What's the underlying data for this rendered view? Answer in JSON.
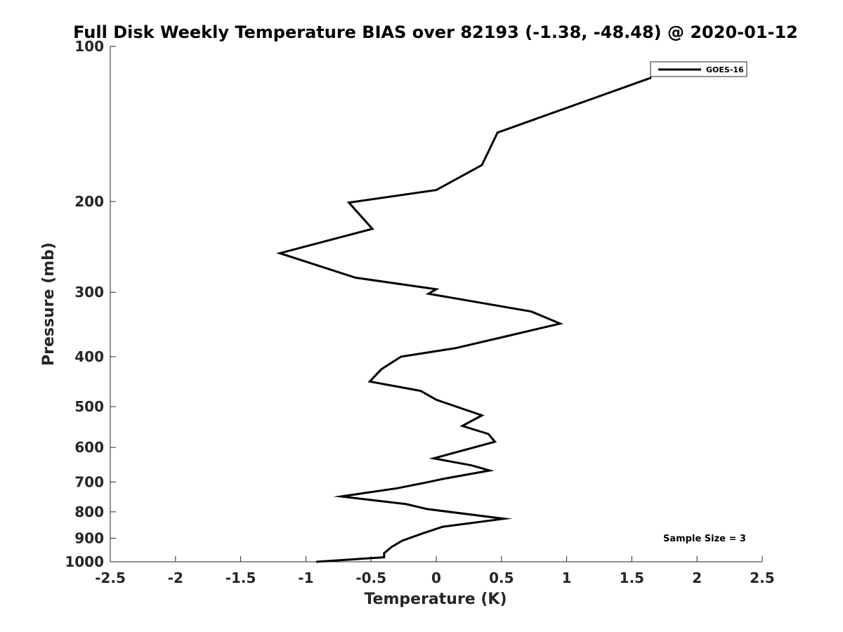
{
  "chart_data": {
    "type": "line",
    "title": "Full Disk Weekly Temperature BIAS over 82193 (-1.38, -48.48) @ 2020-01-12",
    "xlabel": "Temperature (K)",
    "ylabel": "Pressure (mb)",
    "xlim": [
      -2.5,
      2.5
    ],
    "ylim": [
      100,
      1000
    ],
    "yscale": "log",
    "y_reversed": true,
    "xticks": [
      -2.5,
      -2,
      -1.5,
      -1,
      -0.5,
      0,
      0.5,
      1,
      1.5,
      2,
      2.5
    ],
    "xtick_labels": [
      "-2.5",
      "-2",
      "-1.5",
      "-1",
      "-0.5",
      "0",
      "0.5",
      "1",
      "1.5",
      "2",
      "2.5"
    ],
    "yticks": [
      100,
      200,
      300,
      400,
      500,
      600,
      700,
      800,
      900,
      1000
    ],
    "ytick_labels": [
      "100",
      "200",
      "300",
      "400",
      "500",
      "600",
      "700",
      "800",
      "900",
      "1000"
    ],
    "grid": false,
    "legend_position": "top-right",
    "series": [
      {
        "name": "GOES-16",
        "color": "#000000",
        "x": [
          1.65,
          0.47,
          0.35,
          0.0,
          -0.67,
          -0.49,
          -1.2,
          -0.62,
          0.0,
          -0.06,
          0.73,
          0.95,
          0.5,
          0.15,
          -0.27,
          -0.42,
          -0.51,
          -0.12,
          0.0,
          0.35,
          0.2,
          0.4,
          0.45,
          -0.02,
          0.27,
          0.41,
          0.06,
          -0.07,
          -0.3,
          -0.73,
          -0.23,
          -0.07,
          0.52,
          0.05,
          -0.1,
          -0.26,
          -0.34,
          -0.4,
          -0.4,
          -0.92
        ],
        "y": [
          115,
          147,
          170,
          190,
          201,
          226,
          252,
          281,
          296,
          302,
          327,
          345,
          367,
          385,
          400,
          423,
          447,
          466,
          485,
          520,
          545,
          565,
          585,
          630,
          650,
          665,
          690,
          701,
          720,
          747,
          773,
          790,
          825,
          855,
          880,
          910,
          935,
          962,
          980,
          1000
        ]
      }
    ],
    "annotations": [
      "Sample Size = 3"
    ]
  }
}
